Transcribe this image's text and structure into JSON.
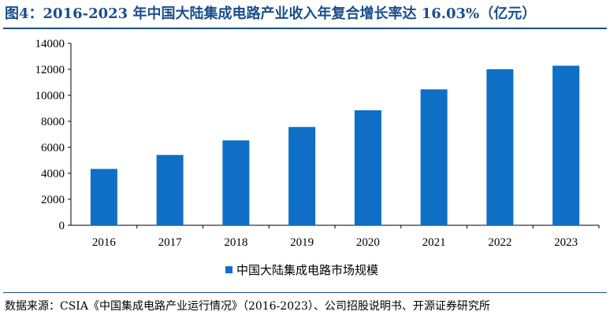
{
  "title": "图4：2016-2023 年中国大陆集成电路产业收入年复合增长率达 16.03%（亿元）",
  "source": "数据来源：CSIA《中国集成电路产业运行情况》（2016-2023）、公司招股说明书、开源证券研究所",
  "colors": {
    "bar": "#0f6fc6",
    "title": "#1a4e8c"
  },
  "chart_data": {
    "type": "bar",
    "categories": [
      "2016",
      "2017",
      "2018",
      "2019",
      "2020",
      "2021",
      "2022",
      "2023"
    ],
    "series": [
      {
        "name": "中国大陆集成电路市场规模",
        "values": [
          4336,
          5411,
          6532,
          7562,
          8848,
          10458,
          12006,
          12277
        ]
      }
    ],
    "yticks": [
      "0",
      "2000",
      "4000",
      "6000",
      "8000",
      "10000",
      "12000",
      "14000"
    ],
    "ylim": [
      0,
      14000
    ],
    "grid": false,
    "legend": "bottom-center"
  }
}
